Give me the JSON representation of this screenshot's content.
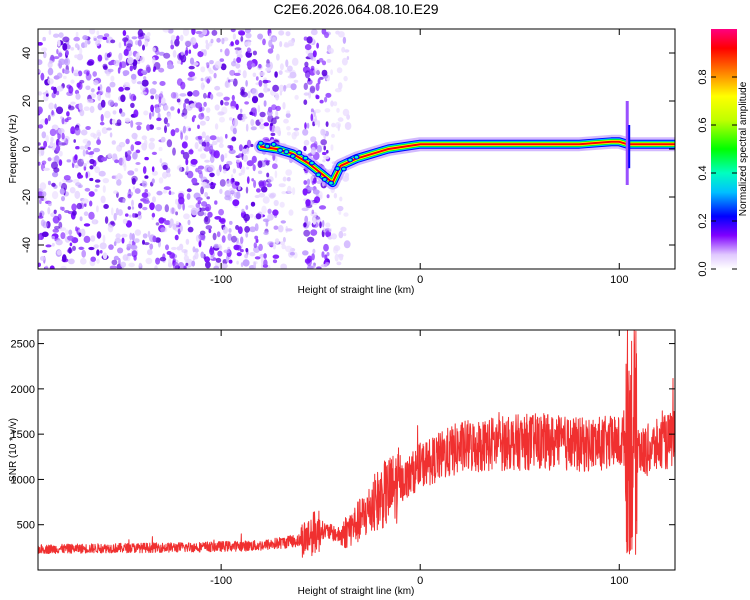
{
  "figure": {
    "title": "C2E6.2026.064.08.10.E29"
  },
  "chart_data": [
    {
      "type": "heatmap",
      "description_of_content": "spectrogram",
      "xlabel": "Height of straight line (km)",
      "ylabel": "Frequency (Hz)",
      "xlim": [
        -192,
        128
      ],
      "ylim": [
        -50,
        50
      ],
      "xticks": [
        -100,
        0,
        100
      ],
      "yticks": [
        -40,
        -20,
        0,
        20,
        40
      ],
      "xtick_labels": [
        "-100",
        "0",
        "100"
      ],
      "ytick_labels": [
        "-40",
        "-20",
        "0",
        "20",
        "40"
      ],
      "colorbar": {
        "label": "Normalized spectral amplitude",
        "range": [
          0,
          1
        ],
        "ticks": [
          0.0,
          0.2,
          0.4,
          0.6,
          0.8
        ],
        "tick_labels": [
          "0.0",
          "0.2",
          "0.4",
          "0.6",
          "0.8"
        ],
        "colormap": [
          "#ffffff",
          "#e0c8ff",
          "#7f00ff",
          "#0000ff",
          "#00c0ff",
          "#00ffc0",
          "#00ff00",
          "#c0ff00",
          "#ffff00",
          "#ff8000",
          "#ff0000",
          "#ff0080"
        ]
      },
      "ridge": {
        "x": [
          -80,
          -72,
          -64,
          -56,
          -50,
          -44,
          -40,
          -32,
          -24,
          -16,
          -8,
          0,
          10,
          20,
          40,
          60,
          80,
          96,
          100,
          104,
          110,
          128
        ],
        "frequency": [
          1,
          0,
          -2,
          -6,
          -10,
          -14,
          -7,
          -4,
          -2,
          0,
          1,
          2,
          2,
          2,
          2,
          2,
          2,
          3,
          3,
          2,
          2,
          2
        ]
      }
    },
    {
      "type": "line",
      "xlabel": "Height of straight line (km)",
      "ylabel": "SNR (10 * v/v)",
      "xlim": [
        -192,
        128
      ],
      "ylim": [
        0,
        2650
      ],
      "xticks": [
        -100,
        0,
        100
      ],
      "yticks": [
        500,
        1000,
        1500,
        2000,
        2500
      ],
      "xtick_labels": [
        "-100",
        "0",
        "100"
      ],
      "ytick_labels": [
        "500",
        "1000",
        "1500",
        "2000",
        "2500"
      ],
      "color": "#f03030",
      "envelope": {
        "x": [
          -192,
          -160,
          -120,
          -80,
          -60,
          -50,
          -40,
          -30,
          -20,
          -10,
          0,
          10,
          20,
          40,
          60,
          80,
          100,
          104,
          106,
          108,
          112,
          128
        ],
        "mean": [
          230,
          240,
          250,
          270,
          330,
          450,
          380,
          550,
          800,
          950,
          1150,
          1250,
          1350,
          1400,
          1420,
          1380,
          1400,
          1500,
          1500,
          1400,
          1300,
          1450
        ]
      }
    }
  ]
}
